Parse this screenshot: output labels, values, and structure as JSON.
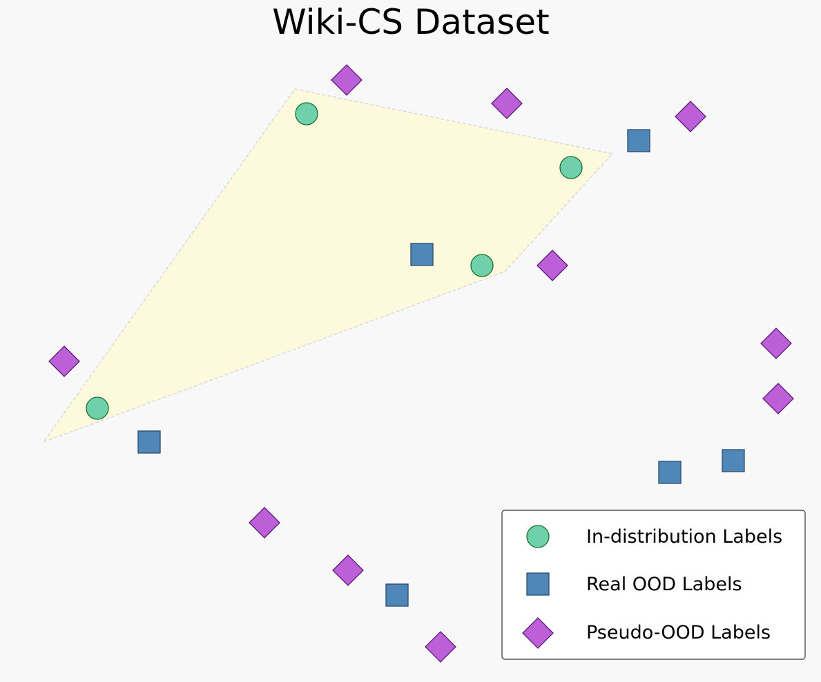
{
  "chart_data": {
    "type": "scatter",
    "title": "Wiki-CS Dataset",
    "xlabel": "",
    "ylabel": "",
    "axes_visible": false,
    "grid": false,
    "legend_position": "bottom-right",
    "hull": {
      "fill_color": "#fdf9dc",
      "stroke_color": "#d8d8d8",
      "vertices": [
        [
          427,
          129
        ],
        [
          887,
          223
        ],
        [
          731,
          394
        ],
        [
          63,
          641
        ]
      ]
    },
    "series": [
      {
        "name": "In-distribution Labels",
        "marker": "circle",
        "color": "#6fd1ac",
        "edge_color": "#1d6b2a",
        "points": [
          [
            444,
            165
          ],
          [
            827,
            243
          ],
          [
            698,
            385
          ],
          [
            141,
            592
          ]
        ]
      },
      {
        "name": "Real OOD Labels",
        "marker": "square",
        "color": "#4f88b8",
        "edge_color": "#2c4a6e",
        "points": [
          [
            925,
            204
          ],
          [
            611,
            369
          ],
          [
            216,
            641
          ],
          [
            970,
            685
          ],
          [
            1062,
            668
          ],
          [
            575,
            863
          ]
        ]
      },
      {
        "name": "Pseudo-OOD Labels",
        "marker": "diamond",
        "color": "#bd5fd6",
        "edge_color": "#5a1a7a",
        "points": [
          [
            502,
            116
          ],
          [
            734,
            150
          ],
          [
            1000,
            169
          ],
          [
            800,
            385
          ],
          [
            93,
            524
          ],
          [
            1124,
            498
          ],
          [
            1127,
            578
          ],
          [
            383,
            758
          ],
          [
            504,
            827
          ],
          [
            638,
            938
          ]
        ]
      }
    ]
  }
}
